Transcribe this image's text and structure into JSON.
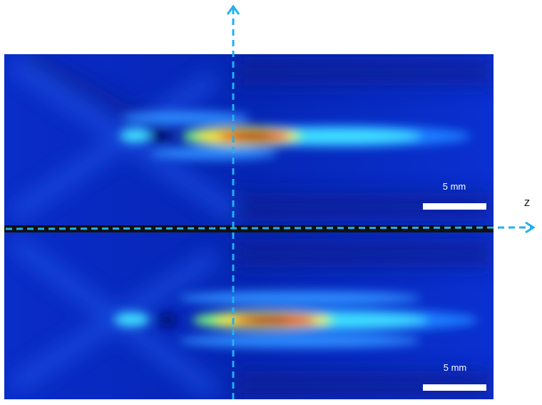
{
  "panels": [
    {
      "scale_bar_label": "5 mm"
    },
    {
      "scale_bar_label": "5 mm"
    }
  ],
  "axis_label": "z"
}
